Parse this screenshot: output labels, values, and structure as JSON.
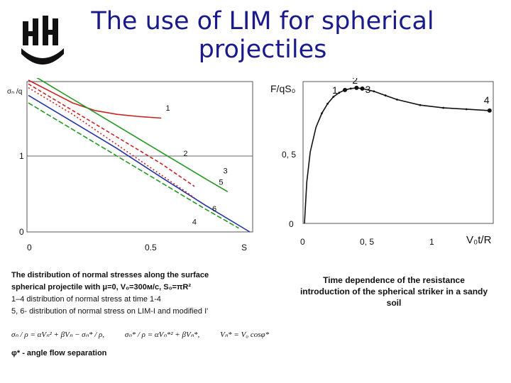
{
  "slide": {
    "title": "The use of LIM for spherical projectiles",
    "logo_icon": "nnsu-university-logo",
    "accent_color": "#1a1a8c"
  },
  "left_caption": {
    "line1": "The distribution of normal stresses along the surface",
    "line2": "spherical projectile with  μ=0, V₀=300м/c, S₀=πR²",
    "line3": "1–4  distribution of normal stress at time 1-4",
    "line4": "5, 6- distribution of normal stress on LIM-I and modified I'",
    "formula1": "σₙ / ρ = αVₙ² + βVₙ − σₙ* / ρ,",
    "formula2": "σₙ* / ρ = αVₙ*² + βVₙ*,",
    "formula3": "Vₙ* = V₀ cosφ*",
    "phi_note": "φ* - angle flow separation"
  },
  "right_caption": {
    "text": "Time dependence of the resistance introduction of the spherical striker in a sandy soil"
  },
  "chart_data": [
    {
      "type": "line",
      "ylabel": "σₙ /q",
      "y_ticks": [
        "1",
        "0"
      ],
      "x_ticks": [
        "0",
        "0.5",
        "S"
      ],
      "curve_labels": [
        "1",
        "2",
        "3",
        "4",
        "5",
        "6"
      ],
      "colors": {
        "1": "#cc2222",
        "2": "#229922",
        "3": "#cc2222",
        "4": "#2233aa",
        "5": "#cc2222",
        "6": "#229922"
      },
      "series": [
        {
          "name": "1",
          "x": [
            0.0,
            0.1,
            0.2,
            0.3,
            0.4,
            0.5,
            0.6
          ],
          "y": [
            2.0,
            1.85,
            1.7,
            1.6,
            1.55,
            1.52,
            1.5
          ]
        },
        {
          "name": "2",
          "x": [
            0.0,
            0.2,
            0.4,
            0.6,
            0.8,
            0.9
          ],
          "y": [
            2.1,
            1.75,
            1.4,
            1.05,
            0.7,
            0.53
          ]
        },
        {
          "name": "3",
          "x": [
            0.0,
            0.2,
            0.4,
            0.6,
            0.75
          ],
          "y": [
            1.95,
            1.6,
            1.25,
            0.9,
            0.6
          ]
        },
        {
          "name": "4",
          "x": [
            0.0,
            0.2,
            0.4,
            0.6,
            0.8,
            1.0
          ],
          "y": [
            1.8,
            1.45,
            1.1,
            0.72,
            0.35,
            0.0
          ]
        },
        {
          "name": "5",
          "x": [
            0.0,
            0.2,
            0.4,
            0.6,
            0.75
          ],
          "y": [
            1.9,
            1.55,
            1.15,
            0.75,
            0.45
          ]
        },
        {
          "name": "6",
          "x": [
            0.0,
            0.2,
            0.4,
            0.6,
            0.8,
            0.95
          ],
          "y": [
            1.7,
            1.35,
            1.0,
            0.65,
            0.3,
            0.05
          ]
        }
      ]
    },
    {
      "type": "line",
      "ylabel": "F/qS₀",
      "xlabel": "V₀t/R",
      "y_ticks": [
        "0, 5",
        "0"
      ],
      "x_ticks": [
        "0",
        "0, 5",
        "1"
      ],
      "curve_labels": [
        "1",
        "2",
        "3",
        "4"
      ],
      "series": [
        {
          "name": "F",
          "x": [
            0.0,
            0.02,
            0.05,
            0.1,
            0.15,
            0.2,
            0.25,
            0.3,
            0.35,
            0.4,
            0.45,
            0.5,
            0.6,
            0.7,
            0.8,
            1.0,
            1.2,
            1.4,
            1.6
          ],
          "y": [
            0.0,
            0.3,
            0.52,
            0.7,
            0.8,
            0.87,
            0.92,
            0.95,
            0.97,
            0.98,
            0.985,
            0.98,
            0.96,
            0.93,
            0.9,
            0.86,
            0.84,
            0.83,
            0.82
          ]
        }
      ],
      "markers": [
        {
          "label": "1",
          "x": 0.35
        },
        {
          "label": "2",
          "x": 0.45
        },
        {
          "label": "3",
          "x": 0.5
        },
        {
          "label": "4",
          "x": 1.6
        }
      ]
    }
  ]
}
